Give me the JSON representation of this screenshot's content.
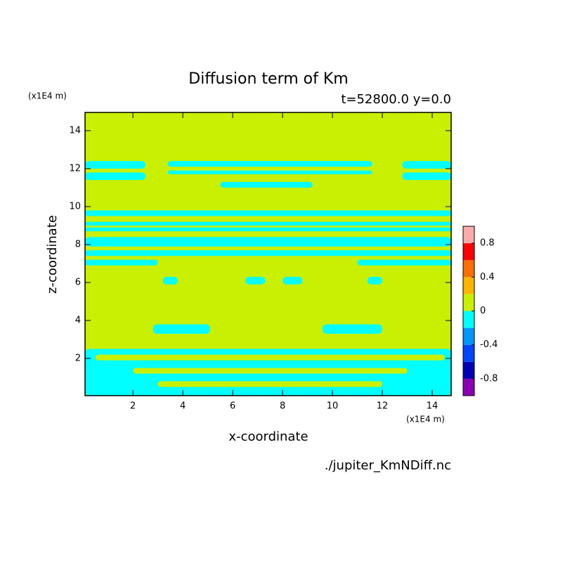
{
  "chart_data": {
    "type": "contour",
    "title": "Diffusion term of Km",
    "subtitle": "t=52800.0 y=0.0",
    "x_label": "x-coordinate",
    "y_label": "z-coordinate",
    "x_unit": "(x1E4 m)",
    "y_unit": "(x1E4 m)",
    "footer": "./jupiter_KmNDiff.nc",
    "xlim": [
      0.08,
      14.76
    ],
    "ylim": [
      0.04,
      14.96
    ],
    "xticks": [
      2,
      4,
      6,
      8,
      10,
      12,
      14
    ],
    "yticks": [
      2,
      4,
      6,
      8,
      10,
      12,
      14
    ],
    "levels": [
      -1,
      -0.8,
      -0.6,
      -0.4,
      -0.2,
      0,
      0.2,
      0.4,
      0.6,
      0.8,
      1
    ],
    "colors": [
      "#8c00b4",
      "#0000b4",
      "#0046ff",
      "#0096ff",
      "#00ffff",
      "#c8f000",
      "#ffb400",
      "#ff6e00",
      "#ff0000",
      "#ffaaaa"
    ],
    "colorbar_ticks": [
      -0.8,
      -0.4,
      0,
      0.4,
      0.8
    ],
    "background_band": 5,
    "regions": [
      {
        "x": [
          0.08,
          2.5
        ],
        "z": [
          12.0,
          12.4
        ],
        "band": 4
      },
      {
        "x": [
          0.08,
          2.5
        ],
        "z": [
          11.4,
          11.8
        ],
        "band": 4
      },
      {
        "x": [
          3.4,
          11.6
        ],
        "z": [
          12.1,
          12.4
        ],
        "band": 4
      },
      {
        "x": [
          3.4,
          11.6
        ],
        "z": [
          11.7,
          11.9
        ],
        "band": 4
      },
      {
        "x": [
          12.8,
          14.76
        ],
        "z": [
          12.0,
          12.4
        ],
        "band": 4
      },
      {
        "x": [
          12.8,
          14.76
        ],
        "z": [
          11.4,
          11.8
        ],
        "band": 4
      },
      {
        "x": [
          5.5,
          9.2
        ],
        "z": [
          11.0,
          11.3
        ],
        "band": 4
      },
      {
        "x": [
          0.08,
          14.76
        ],
        "z": [
          9.5,
          9.8
        ],
        "band": 4
      },
      {
        "x": [
          0.08,
          14.76
        ],
        "z": [
          9.0,
          9.2
        ],
        "band": 4
      },
      {
        "x": [
          0.08,
          14.76
        ],
        "z": [
          8.7,
          8.9
        ],
        "band": 4
      },
      {
        "x": [
          0.08,
          14.76
        ],
        "z": [
          7.9,
          8.4
        ],
        "band": 4
      },
      {
        "x": [
          0.08,
          14.76
        ],
        "z": [
          7.4,
          7.7
        ],
        "band": 4
      },
      {
        "x": [
          0.08,
          3.0
        ],
        "z": [
          6.9,
          7.2
        ],
        "band": 4
      },
      {
        "x": [
          11.0,
          14.76
        ],
        "z": [
          6.9,
          7.2
        ],
        "band": 4
      },
      {
        "x": [
          3.2,
          3.8
        ],
        "z": [
          5.9,
          6.3
        ],
        "band": 4
      },
      {
        "x": [
          6.5,
          7.3
        ],
        "z": [
          5.9,
          6.3
        ],
        "band": 4
      },
      {
        "x": [
          8.0,
          8.8
        ],
        "z": [
          5.9,
          6.3
        ],
        "band": 4
      },
      {
        "x": [
          11.4,
          12.0
        ],
        "z": [
          5.9,
          6.3
        ],
        "band": 4
      },
      {
        "x": [
          2.8,
          5.1
        ],
        "z": [
          3.3,
          3.8
        ],
        "band": 4
      },
      {
        "x": [
          9.6,
          12.0
        ],
        "z": [
          3.3,
          3.8
        ],
        "band": 4
      },
      {
        "x": [
          0.08,
          14.76
        ],
        "z": [
          0.04,
          2.5
        ],
        "band": 4
      },
      {
        "x": [
          0.5,
          14.5
        ],
        "z": [
          1.9,
          2.2
        ],
        "band": 5
      },
      {
        "x": [
          2.0,
          13.0
        ],
        "z": [
          1.2,
          1.5
        ],
        "band": 5
      },
      {
        "x": [
          3.0,
          12.0
        ],
        "z": [
          0.5,
          0.8
        ],
        "band": 5
      }
    ]
  }
}
